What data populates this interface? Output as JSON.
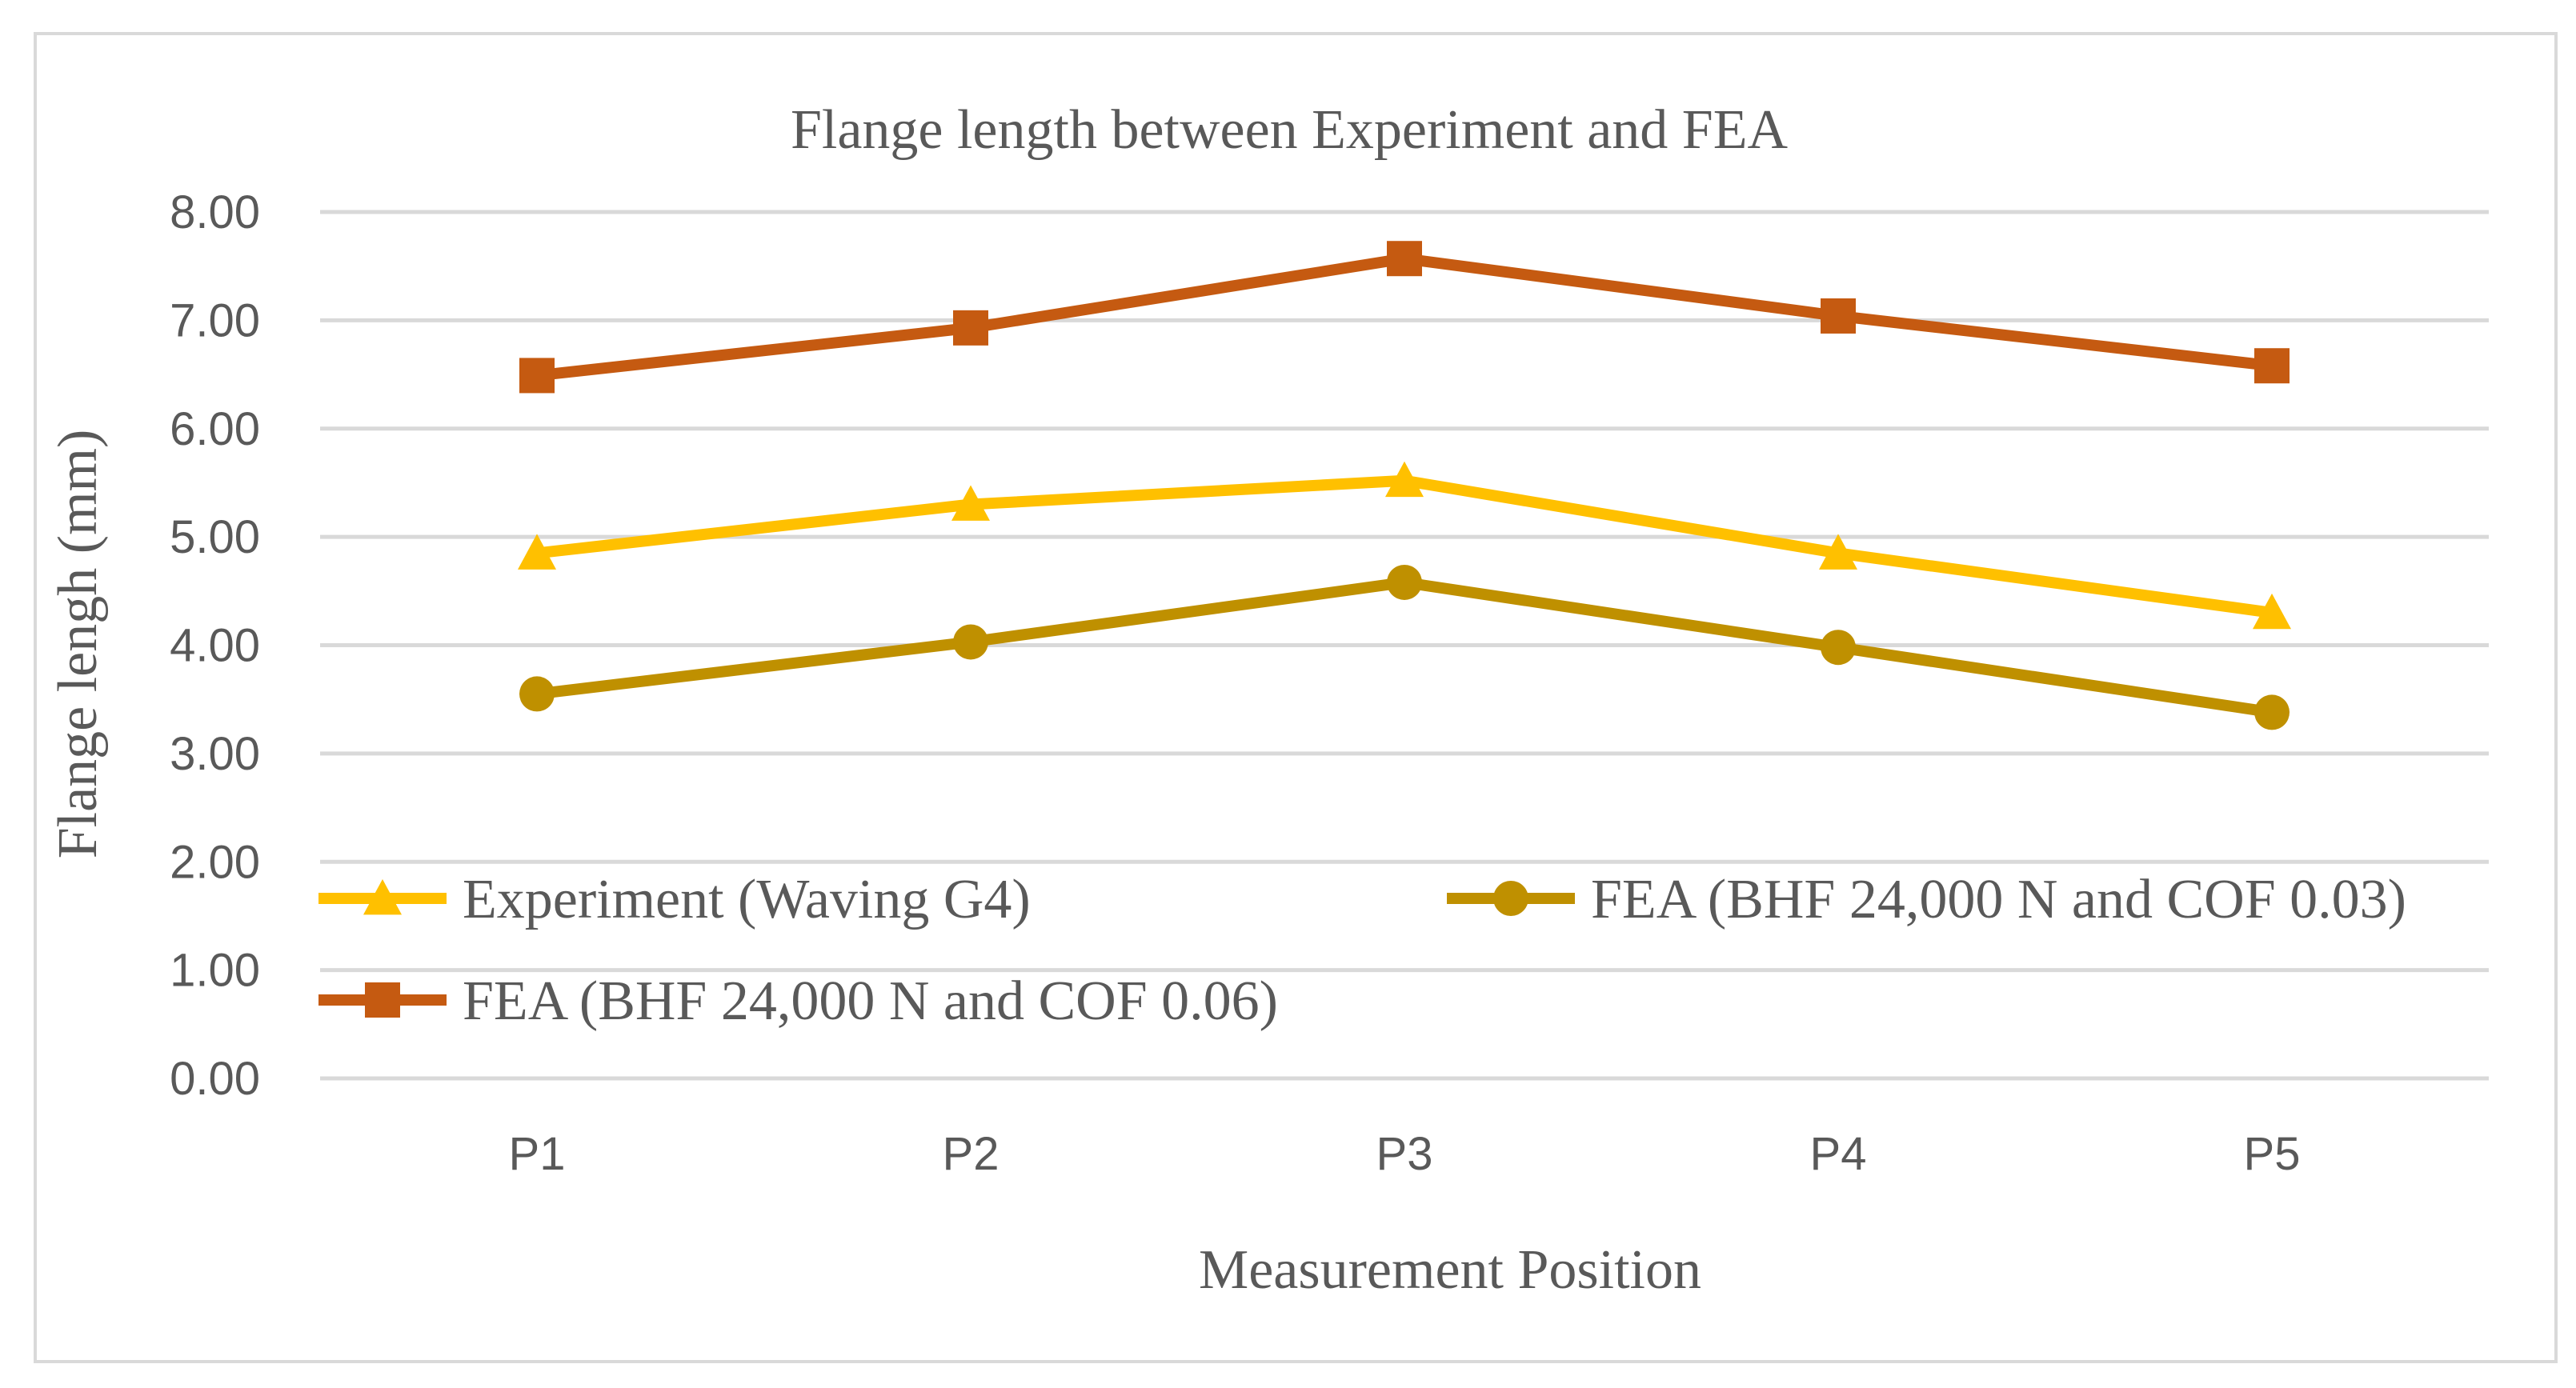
{
  "chart_data": {
    "type": "line",
    "title": "Flange length between Experiment and FEA",
    "xlabel": "Measurement Position",
    "ylabel": "Flange lengh (mm)",
    "categories": [
      "P1",
      "P2",
      "P3",
      "P4",
      "P5"
    ],
    "ylim": [
      0,
      8
    ],
    "yticks": [
      "0.00",
      "1.00",
      "2.00",
      "3.00",
      "4.00",
      "5.00",
      "6.00",
      "7.00",
      "8.00"
    ],
    "grid": true,
    "legend_position": "bottom-left inside plot",
    "series": [
      {
        "name": "Experiment (Waving G4)",
        "values": [
          4.85,
          5.3,
          5.52,
          4.85,
          4.3
        ],
        "color": "#ffc000",
        "marker": "triangle"
      },
      {
        "name": "FEA (BHF 24,000 N and COF 0.03)",
        "values": [
          3.55,
          4.03,
          4.58,
          3.98,
          3.38
        ],
        "color": "#bf9000",
        "marker": "circle"
      },
      {
        "name": "FEA (BHF 24,000 N and COF 0.06)",
        "values": [
          6.49,
          6.93,
          7.57,
          7.04,
          6.58
        ],
        "color": "#c55a11",
        "marker": "square"
      }
    ]
  }
}
